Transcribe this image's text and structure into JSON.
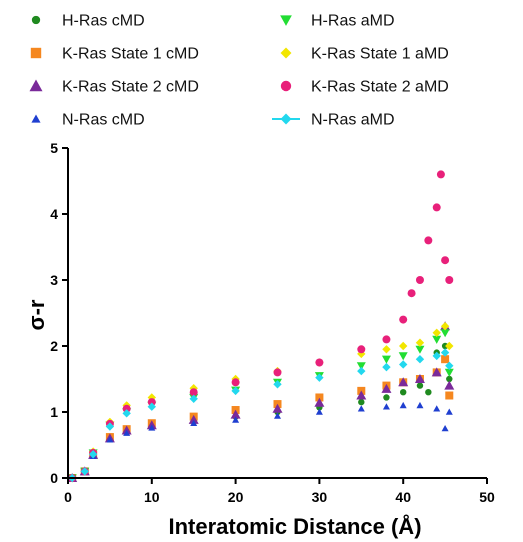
{
  "chart_data": {
    "type": "scatter",
    "title": "",
    "xlabel": "Interatomic Distance (Å)",
    "ylabel": "σ-r",
    "xlim": [
      0,
      50
    ],
    "ylim": [
      0,
      5
    ],
    "x_ticks": [
      0,
      10,
      20,
      30,
      40,
      50
    ],
    "y_ticks": [
      0,
      1,
      2,
      3,
      4,
      5
    ],
    "grid": false,
    "legend_position": "top",
    "series": [
      {
        "name": "H-Ras cMD",
        "color": "#1f8a1f",
        "marker": "circle",
        "x": [
          0.5,
          2,
          3,
          5,
          7,
          10,
          15,
          20,
          25,
          30,
          35,
          38,
          40,
          42,
          43,
          44,
          45,
          45.5
        ],
        "y": [
          0.0,
          0.1,
          0.35,
          0.6,
          0.72,
          0.8,
          0.87,
          0.93,
          1.0,
          1.07,
          1.15,
          1.22,
          1.3,
          1.4,
          1.3,
          1.9,
          2.0,
          1.5
        ]
      },
      {
        "name": "K-Ras State 1 cMD",
        "color": "#f5871f",
        "marker": "square",
        "x": [
          0.5,
          2,
          3,
          5,
          7,
          10,
          15,
          20,
          25,
          30,
          35,
          38,
          40,
          42,
          44,
          45,
          45.5
        ],
        "y": [
          0.0,
          0.1,
          0.35,
          0.62,
          0.74,
          0.83,
          0.93,
          1.03,
          1.12,
          1.22,
          1.32,
          1.4,
          1.45,
          1.5,
          1.6,
          1.8,
          1.25
        ]
      },
      {
        "name": "K-Ras State 2 cMD",
        "color": "#7a2a9a",
        "marker": "triangle",
        "x": [
          0.5,
          2,
          3,
          5,
          7,
          10,
          15,
          20,
          25,
          30,
          35,
          38,
          40,
          42,
          44,
          45,
          45.5
        ],
        "y": [
          0.0,
          0.1,
          0.35,
          0.6,
          0.72,
          0.8,
          0.88,
          0.96,
          1.05,
          1.14,
          1.25,
          1.35,
          1.45,
          1.5,
          1.6,
          2.3,
          1.4
        ]
      },
      {
        "name": "N-Ras cMD",
        "color": "#1f3fd0",
        "marker": "triangle-small",
        "x": [
          0.5,
          2,
          3,
          5,
          7,
          10,
          15,
          20,
          25,
          30,
          35,
          38,
          40,
          42,
          44,
          45,
          45.5
        ],
        "y": [
          0.0,
          0.1,
          0.33,
          0.58,
          0.68,
          0.76,
          0.83,
          0.88,
          0.94,
          1.0,
          1.05,
          1.08,
          1.1,
          1.1,
          1.05,
          0.75,
          1.0
        ]
      },
      {
        "name": "H-Ras aMD",
        "color": "#22dd33",
        "marker": "triangle-down",
        "x": [
          0.5,
          2,
          3,
          5,
          7,
          10,
          15,
          20,
          25,
          30,
          35,
          38,
          40,
          42,
          44,
          45,
          45.5
        ],
        "y": [
          0.0,
          0.1,
          0.38,
          0.8,
          1.0,
          1.1,
          1.22,
          1.33,
          1.45,
          1.55,
          1.7,
          1.8,
          1.85,
          1.95,
          2.1,
          2.2,
          1.6
        ]
      },
      {
        "name": "K-Ras State 1 aMD",
        "color": "#f2e600",
        "marker": "diamond",
        "x": [
          0.5,
          2,
          3,
          5,
          7,
          10,
          15,
          20,
          25,
          30,
          35,
          38,
          40,
          42,
          44,
          45,
          45.5
        ],
        "y": [
          0.0,
          0.1,
          0.4,
          0.85,
          1.1,
          1.22,
          1.36,
          1.5,
          1.62,
          1.75,
          1.88,
          1.95,
          2.0,
          2.05,
          2.2,
          2.3,
          2.0
        ]
      },
      {
        "name": "K-Ras State 2 aMD",
        "color": "#e8207a",
        "marker": "circle-large",
        "x": [
          0.5,
          2,
          3,
          5,
          7,
          10,
          15,
          20,
          25,
          30,
          35,
          38,
          40,
          41,
          42,
          43,
          44,
          44.5,
          45,
          45.5
        ],
        "y": [
          0.0,
          0.1,
          0.38,
          0.82,
          1.05,
          1.15,
          1.3,
          1.45,
          1.6,
          1.75,
          1.95,
          2.1,
          2.4,
          2.8,
          3.0,
          3.6,
          4.1,
          4.6,
          3.3,
          3.0
        ]
      },
      {
        "name": "N-Ras aMD",
        "color": "#22d8ee",
        "marker": "diamond-line",
        "x": [
          0.5,
          2,
          3,
          5,
          7,
          10,
          15,
          20,
          25,
          30,
          35,
          38,
          40,
          42,
          44,
          45,
          45.5
        ],
        "y": [
          0.0,
          0.1,
          0.36,
          0.78,
          0.98,
          1.08,
          1.2,
          1.32,
          1.42,
          1.52,
          1.62,
          1.68,
          1.72,
          1.8,
          1.85,
          1.9,
          1.7
        ]
      }
    ]
  }
}
